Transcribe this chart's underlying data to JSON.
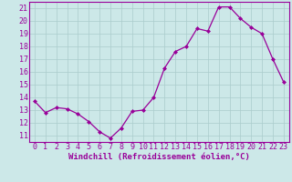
{
  "x": [
    0,
    1,
    2,
    3,
    4,
    5,
    6,
    7,
    8,
    9,
    10,
    11,
    12,
    13,
    14,
    15,
    16,
    17,
    18,
    19,
    20,
    21,
    22,
    23
  ],
  "y": [
    13.7,
    12.8,
    13.2,
    13.1,
    12.7,
    12.1,
    11.3,
    10.8,
    11.6,
    12.9,
    13.0,
    14.0,
    16.3,
    17.6,
    18.0,
    19.4,
    19.2,
    21.1,
    21.1,
    20.2,
    19.5,
    19.0,
    17.0,
    15.2
  ],
  "line_color": "#990099",
  "marker": "D",
  "marker_size": 2.0,
  "bg_color": "#cce8e8",
  "grid_color": "#aacccc",
  "xlabel": "Windchill (Refroidissement éolien,°C)",
  "xlabel_color": "#990099",
  "ylabel_left": [
    "11",
    "12",
    "13",
    "14",
    "15",
    "16",
    "17",
    "18",
    "19",
    "20",
    "21"
  ],
  "ylim": [
    10.5,
    21.5
  ],
  "xlim": [
    -0.5,
    23.5
  ],
  "xtick_labels": [
    "0",
    "1",
    "2",
    "3",
    "4",
    "5",
    "6",
    "7",
    "8",
    "9",
    "10",
    "11",
    "12",
    "13",
    "14",
    "15",
    "16",
    "17",
    "18",
    "19",
    "20",
    "21",
    "22",
    "23"
  ],
  "xlabel_fontsize": 6.5,
  "tick_fontsize": 6.0,
  "linewidth": 0.9
}
